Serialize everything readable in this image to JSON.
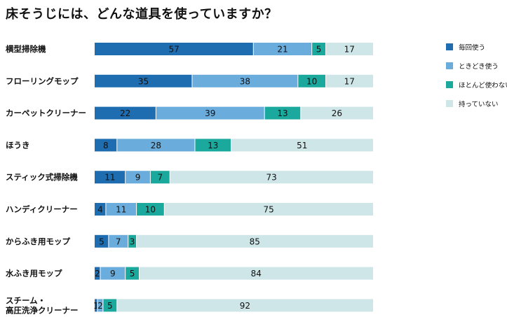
{
  "chart_data": {
    "type": "bar",
    "orientation": "horizontal",
    "stacked": true,
    "normalized": true,
    "title": "床そうじには、どんな道具を使っていますか？",
    "categories": [
      [
        "横型掃除機"
      ],
      [
        "フローリングモップ"
      ],
      [
        "カーペットクリーナー"
      ],
      [
        "ほうき"
      ],
      [
        "スティック式掃除機"
      ],
      [
        "ハンディクリーナー"
      ],
      [
        "からふき用モップ"
      ],
      [
        "水ふき用モップ"
      ],
      [
        "スチーム・",
        "高圧洗浄クリーナー"
      ]
    ],
    "series": [
      {
        "name": "毎回使う",
        "color": "#1f6db1",
        "values": [
          57,
          35,
          22,
          8,
          11,
          4,
          5,
          2,
          1
        ]
      },
      {
        "name": "ときどき使う",
        "color": "#6aaddd",
        "values": [
          21,
          38,
          39,
          28,
          9,
          11,
          7,
          9,
          2
        ]
      },
      {
        "name": "ほとんど使わない",
        "color": "#1aa99c",
        "values": [
          5,
          10,
          13,
          13,
          7,
          10,
          3,
          5,
          5
        ]
      },
      {
        "name": "持っていない",
        "color": "#cfe6e8",
        "values": [
          17,
          17,
          26,
          51,
          73,
          75,
          85,
          84,
          92
        ]
      }
    ],
    "legend_position": "right",
    "grid": false
  }
}
